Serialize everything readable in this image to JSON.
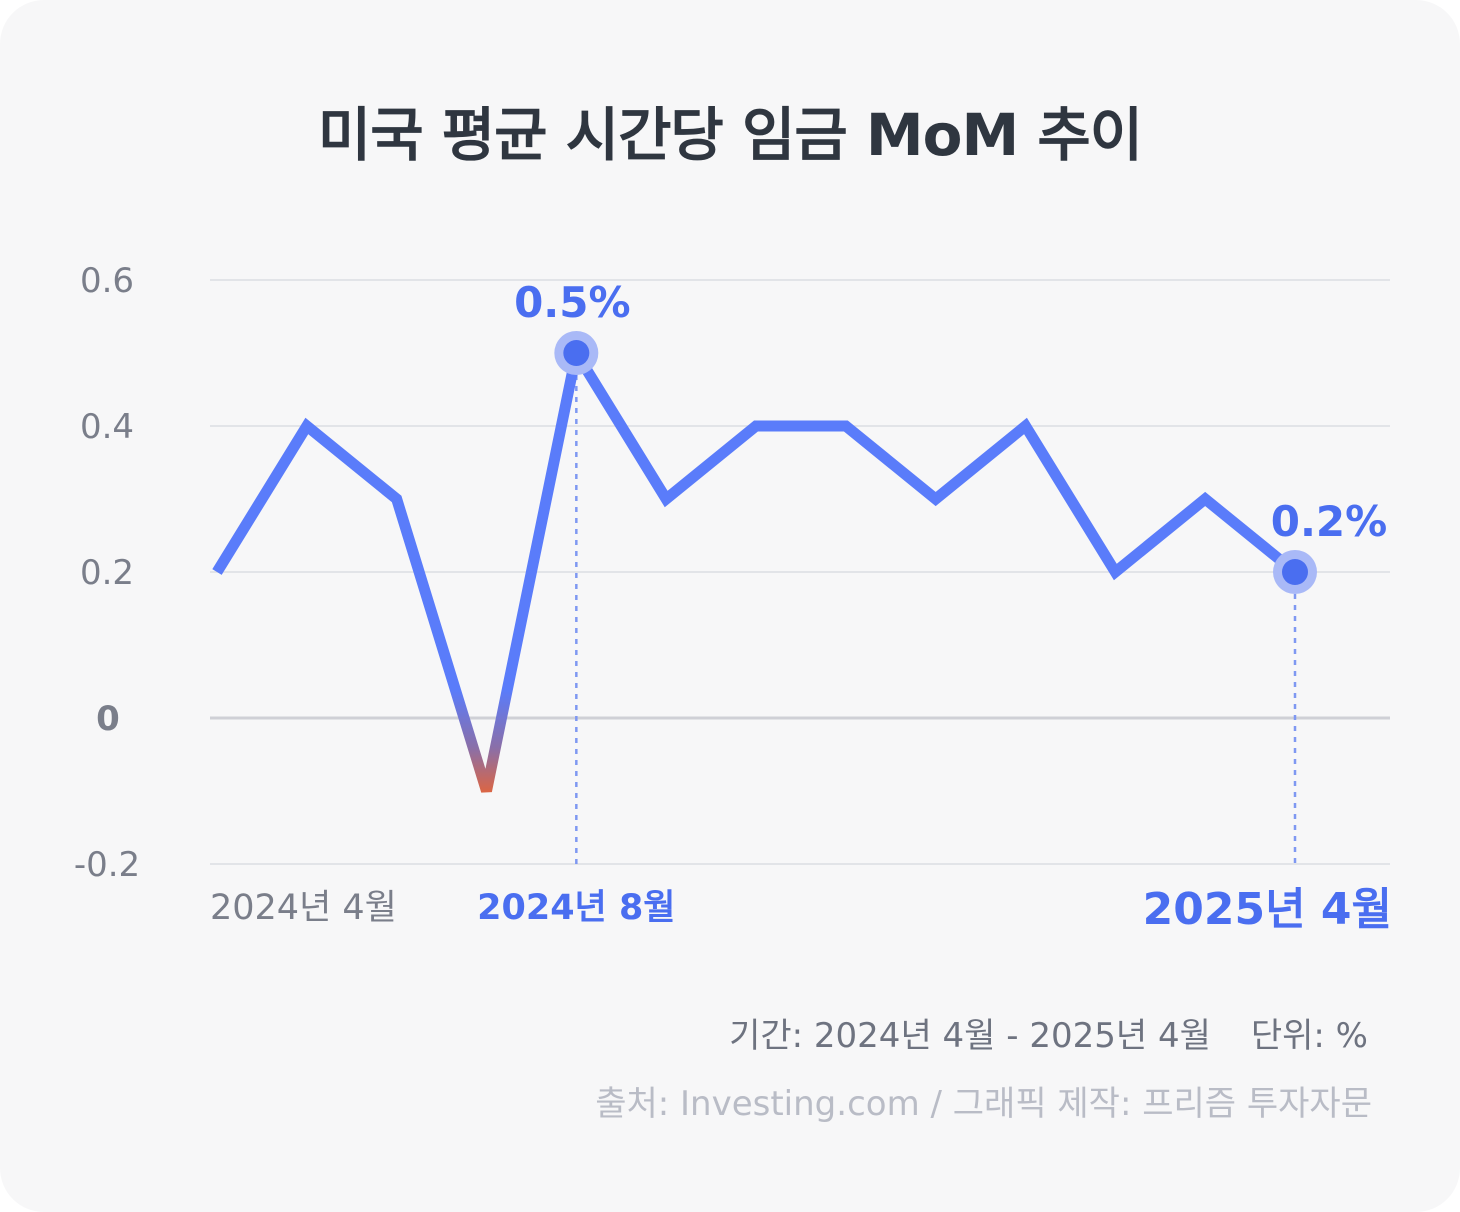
{
  "title": "미국 평균 시간당 임금 MoM 추이",
  "colors": {
    "line": "#5a7cfa",
    "negative": "#e0653e",
    "highlight": "#4a6ef0",
    "grid": "#dcdde2",
    "axis_text": "#7a7e8a"
  },
  "chart_data": {
    "type": "line",
    "title": "미국 평균 시간당 임금 MoM 추이",
    "xlabel": "",
    "ylabel": "",
    "ylim": [
      -0.2,
      0.6
    ],
    "yticks": [
      "0.6",
      "0.4",
      "0.2",
      "0",
      "-0.2"
    ],
    "x": [
      "2024-04",
      "2024-05",
      "2024-06",
      "2024-07",
      "2024-08",
      "2024-09",
      "2024-10",
      "2024-11",
      "2024-12",
      "2025-01",
      "2025-02",
      "2025-03",
      "2025-04"
    ],
    "values": [
      0.2,
      0.4,
      0.3,
      -0.1,
      0.5,
      0.3,
      0.4,
      0.4,
      0.3,
      0.4,
      0.2,
      0.3,
      0.2
    ],
    "x_tick_labels": [
      {
        "index": 0,
        "label": "2024년 4월",
        "highlight": false
      },
      {
        "index": 4,
        "label": "2024년 8월",
        "highlight": true
      },
      {
        "index": 12,
        "label": "2025년 4월",
        "highlight": true
      }
    ],
    "annotations": [
      {
        "index": 4,
        "label": "0.5%"
      },
      {
        "index": 12,
        "label": "0.2%"
      }
    ],
    "grid": true
  },
  "footer": {
    "period": "기간: 2024년 4월 - 2025년 4월",
    "unit": "단위: %",
    "source": "출처: Investing.com / 그래픽 제작: 프리즘 투자자문"
  }
}
